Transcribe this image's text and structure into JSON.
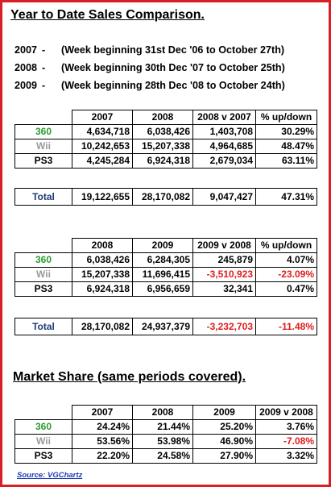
{
  "title": "Year to Date Sales Comparison.",
  "periods": [
    {
      "year": "2007",
      "dash": "-",
      "desc": "(Week beginning 31st Dec '06 to October 27th)"
    },
    {
      "year": "2008",
      "dash": "-",
      "desc": "(Week beginning 30th Dec '07 to October 25th)"
    },
    {
      "year": "2009",
      "dash": "-",
      "desc": "(Week beginning 28th Dec '08 to October 24th)"
    }
  ],
  "table1": {
    "headers": [
      "2007",
      "2008",
      "2008 v 2007",
      "% up/down"
    ],
    "rows": [
      {
        "label": "360",
        "values": [
          "4,634,718",
          "6,038,426",
          "1,403,708",
          "30.29%"
        ]
      },
      {
        "label": "Wii",
        "values": [
          "10,242,653",
          "15,207,338",
          "4,964,685",
          "48.47%"
        ]
      },
      {
        "label": "PS3",
        "values": [
          "4,245,284",
          "6,924,318",
          "2,679,034",
          "63.11%"
        ]
      }
    ],
    "total": {
      "label": "Total",
      "values": [
        "19,122,655",
        "28,170,082",
        "9,047,427",
        "47.31%"
      ]
    }
  },
  "table2": {
    "headers": [
      "2008",
      "2009",
      "2009 v 2008",
      "% up/down"
    ],
    "rows": [
      {
        "label": "360",
        "values": [
          "6,038,426",
          "6,284,305",
          "245,879",
          "4.07%"
        ]
      },
      {
        "label": "Wii",
        "values": [
          "15,207,338",
          "11,696,415",
          "-3,510,923",
          "-23.09%"
        ]
      },
      {
        "label": "PS3",
        "values": [
          "6,924,318",
          "6,956,659",
          "32,341",
          "0.47%"
        ]
      }
    ],
    "total": {
      "label": "Total",
      "values": [
        "28,170,082",
        "24,937,379",
        "-3,232,703",
        "-11.48%"
      ]
    }
  },
  "market_title": "Market Share (same periods covered).",
  "table3": {
    "headers": [
      "2007",
      "2008",
      "2009",
      "2009 v 2008"
    ],
    "rows": [
      {
        "label": "360",
        "values": [
          "24.24%",
          "21.44%",
          "25.20%",
          "3.76%"
        ]
      },
      {
        "label": "Wii",
        "values": [
          "53.56%",
          "53.98%",
          "46.90%",
          "-7.08%"
        ]
      },
      {
        "label": "PS3",
        "values": [
          "22.20%",
          "24.58%",
          "27.90%",
          "3.32%"
        ]
      }
    ]
  },
  "source": "Source: VGChartz",
  "colors": {
    "border": "#d91f26",
    "label_360": "#2e9a2e",
    "label_wii": "#9a9a9a",
    "label_total": "#1f3b73",
    "negative": "#e01b1b",
    "source_link": "#1f3bb0"
  }
}
